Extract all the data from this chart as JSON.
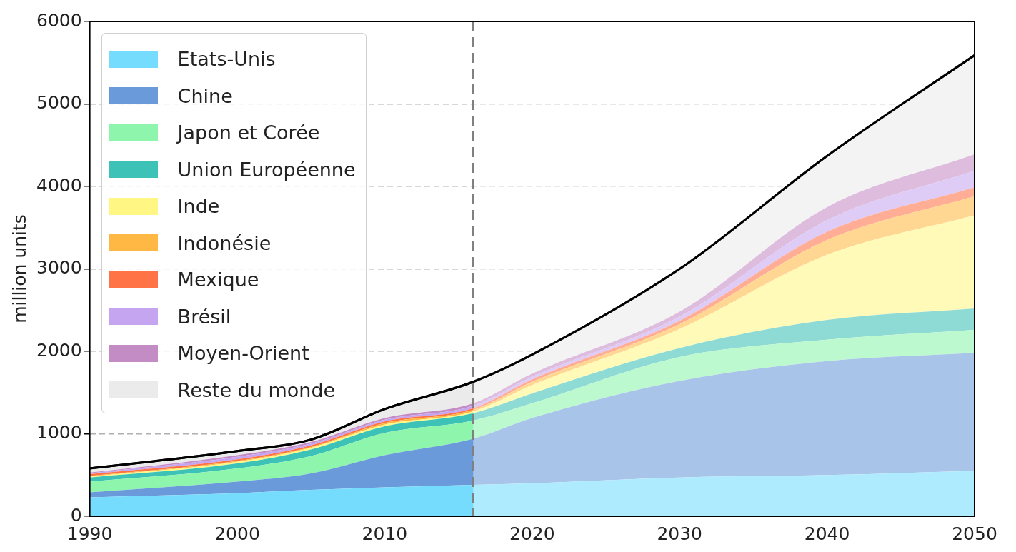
{
  "chart_data": {
    "type": "area",
    "stacked": true,
    "ylabel": "million units",
    "xlim": [
      1990,
      2050
    ],
    "xticks": [
      1990,
      2000,
      2010,
      2020,
      2030,
      2040,
      2050
    ],
    "ylim": [
      0,
      6000
    ],
    "yticks": [
      0,
      1000,
      2000,
      3000,
      4000,
      5000,
      6000
    ],
    "grid": "y",
    "legend": "top left",
    "ref_lines": [
      {
        "axis": "x",
        "value": 2016,
        "color": "#808080",
        "line_style": "dashed"
      }
    ],
    "bands": [
      {
        "axis": "x",
        "from": 2016,
        "to": 2050,
        "color": "#ffffff"
      }
    ],
    "x": [
      1990,
      2000,
      2005,
      2010,
      2016,
      2020,
      2030,
      2040,
      2050
    ],
    "series": [
      {
        "name": "Etats-Unis",
        "color": "#75dcfd",
        "values": [
          230,
          280,
          320,
          350,
          380,
          400,
          470,
          500,
          550
        ]
      },
      {
        "name": "Chine",
        "color": "#6a9ad9",
        "values": [
          60,
          140,
          200,
          390,
          560,
          790,
          1170,
          1380,
          1430
        ]
      },
      {
        "name": "Japon et Corée",
        "color": "#8ef5ad",
        "values": [
          130,
          160,
          210,
          270,
          220,
          180,
          290,
          260,
          280
        ]
      },
      {
        "name": "Union Européenne",
        "color": "#3cc2b6",
        "values": [
          50,
          60,
          80,
          80,
          90,
          120,
          110,
          240,
          260
        ]
      },
      {
        "name": "Inde",
        "color": "#fff683",
        "values": [
          10,
          20,
          20,
          20,
          20,
          100,
          230,
          790,
          1130
        ]
      },
      {
        "name": "Indonésie",
        "color": "#ffb844",
        "values": [
          10,
          10,
          10,
          20,
          20,
          40,
          60,
          180,
          230
        ]
      },
      {
        "name": "Mexique",
        "color": "#ff7347",
        "values": [
          20,
          20,
          20,
          20,
          20,
          30,
          40,
          100,
          110
        ]
      },
      {
        "name": "Brésil",
        "color": "#c6a5f0",
        "values": [
          10,
          30,
          20,
          20,
          30,
          30,
          50,
          140,
          200
        ]
      },
      {
        "name": "Moyen-Orient",
        "color": "#c48cc4",
        "values": [
          10,
          20,
          20,
          20,
          30,
          40,
          60,
          160,
          200
        ]
      },
      {
        "name": "Reste du monde",
        "color": "#ebebeb",
        "line_style": "solid",
        "values": [
          50,
          50,
          30,
          110,
          260,
          230,
          520,
          620,
          1200
        ]
      }
    ]
  }
}
